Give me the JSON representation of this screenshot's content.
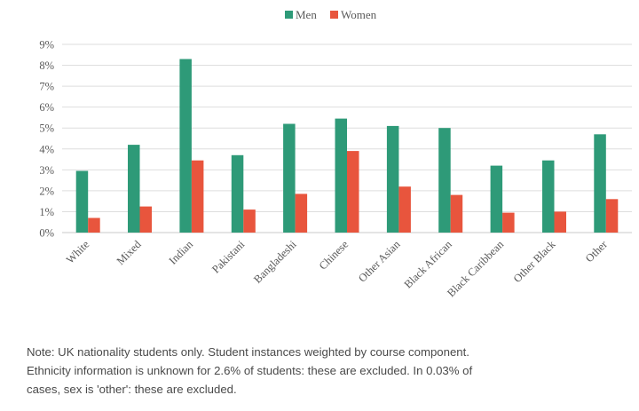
{
  "chart_data": {
    "type": "bar",
    "categories": [
      "White",
      "Mixed",
      "Indian",
      "Pakistani",
      "Bangladeshi",
      "Chinese",
      "Other Asian",
      "Black African",
      "Black Caribbean",
      "Other Black",
      "Other"
    ],
    "series": [
      {
        "name": "Men",
        "values": [
          2.95,
          4.2,
          8.3,
          3.7,
          5.2,
          5.45,
          5.1,
          5.0,
          3.2,
          3.45,
          4.7
        ]
      },
      {
        "name": "Women",
        "values": [
          0.7,
          1.25,
          3.45,
          1.1,
          1.85,
          3.9,
          2.2,
          1.8,
          0.95,
          1.0,
          1.6
        ]
      }
    ],
    "colors": {
      "Men": "#2e9a78",
      "Women": "#e8553d"
    },
    "y_ticks": [
      "0%",
      "1%",
      "2%",
      "3%",
      "4%",
      "5%",
      "6%",
      "7%",
      "8%",
      "9%"
    ],
    "ylim": [
      0,
      9
    ],
    "grid": true,
    "legend_position": "top-center"
  },
  "note": {
    "lines": [
      "Note: UK nationality students only. Student instances weighted by course component.",
      "Ethnicity information is unknown for 2.6% of students: these are excluded. In 0.03% of",
      "cases, sex is 'other': these are excluded."
    ]
  }
}
